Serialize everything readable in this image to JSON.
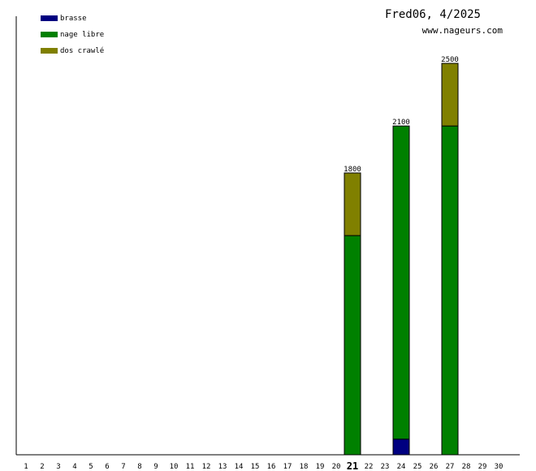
{
  "chart_data": {
    "type": "bar",
    "stacked": true,
    "title": "Fred06, 4/2025",
    "subtitle": "www.nageurs.com",
    "categories": [
      "1",
      "2",
      "3",
      "4",
      "5",
      "6",
      "7",
      "8",
      "9",
      "10",
      "11",
      "12",
      "13",
      "14",
      "15",
      "16",
      "17",
      "18",
      "19",
      "20",
      "21",
      "22",
      "23",
      "24",
      "25",
      "26",
      "27",
      "28",
      "29",
      "30"
    ],
    "highlighted_category": "21",
    "series": [
      {
        "name": "brasse",
        "color": "#000080",
        "values": [
          0,
          0,
          0,
          0,
          0,
          0,
          0,
          0,
          0,
          0,
          0,
          0,
          0,
          0,
          0,
          0,
          0,
          0,
          0,
          0,
          0,
          0,
          0,
          100,
          0,
          0,
          0,
          0,
          0,
          0
        ]
      },
      {
        "name": "nage libre",
        "color": "#008000",
        "values": [
          0,
          0,
          0,
          0,
          0,
          0,
          0,
          0,
          0,
          0,
          0,
          0,
          0,
          0,
          0,
          0,
          0,
          0,
          0,
          0,
          1400,
          0,
          0,
          2000,
          0,
          0,
          2100,
          0,
          0,
          0
        ]
      },
      {
        "name": "dos crawlé",
        "color": "#808000",
        "values": [
          0,
          0,
          0,
          0,
          0,
          0,
          0,
          0,
          0,
          0,
          0,
          0,
          0,
          0,
          0,
          0,
          0,
          0,
          0,
          0,
          400,
          0,
          0,
          0,
          0,
          0,
          400,
          0,
          0,
          0
        ]
      }
    ],
    "totals": [
      "",
      "",
      "",
      "",
      "",
      "",
      "",
      "",
      "",
      "",
      "",
      "",
      "",
      "",
      "",
      "",
      "",
      "",
      "",
      "",
      "1800",
      "",
      "",
      "2100",
      "",
      "",
      "2500",
      "",
      "",
      ""
    ],
    "ylim": [
      0,
      2500
    ],
    "grid": false,
    "legend_position": "top-left"
  }
}
